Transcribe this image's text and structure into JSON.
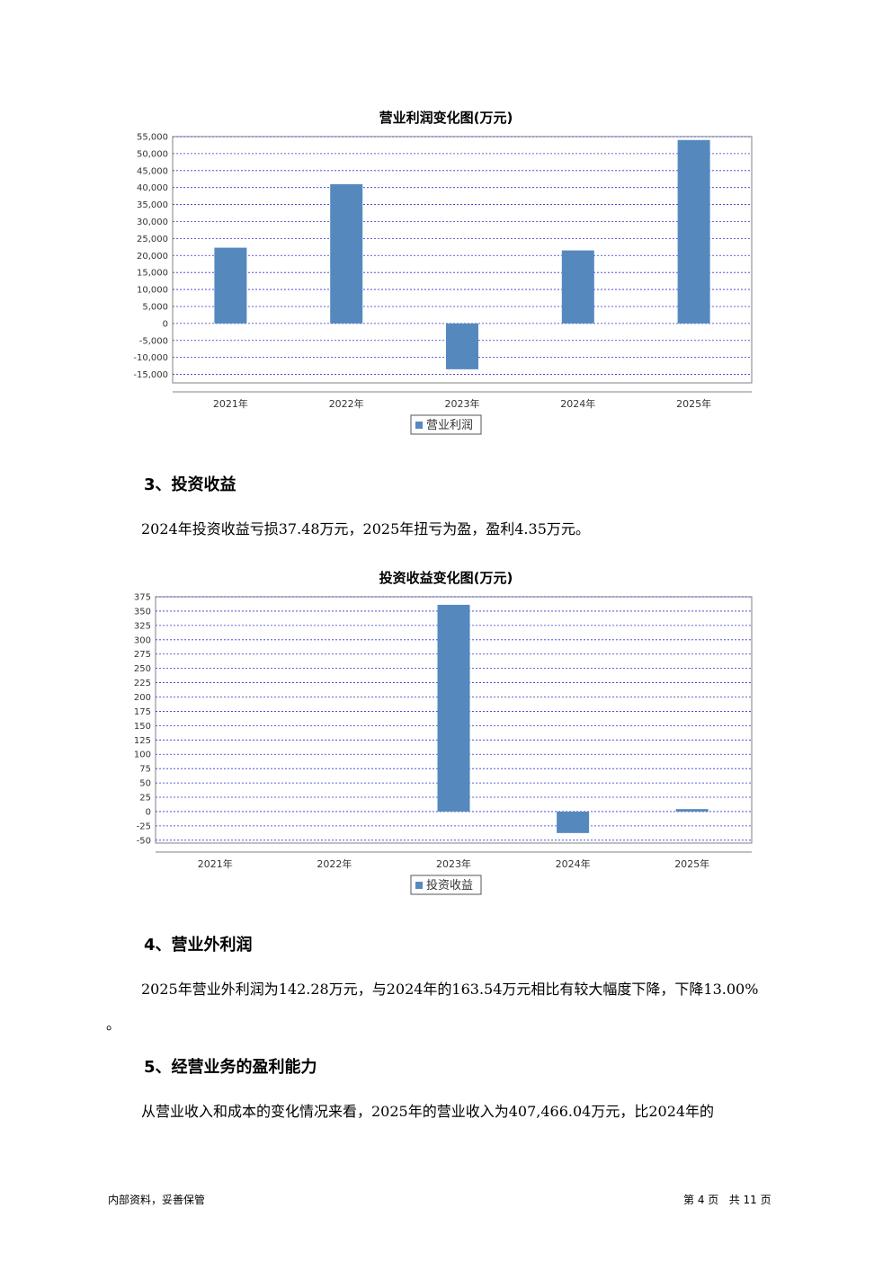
{
  "charts": [
    {
      "title": "营业利润变化图(万元)",
      "chart_data": {
        "type": "bar",
        "categories": [
          "2021年",
          "2022年",
          "2023年",
          "2024年",
          "2025年"
        ],
        "series": [
          {
            "name": "营业利润",
            "values": [
              22300,
              41000,
              -13500,
              21500,
              54000
            ],
            "color": "#5589be"
          }
        ],
        "ylim": [
          -17500,
          55000
        ],
        "yticks": [
          55000,
          50000,
          45000,
          40000,
          35000,
          30000,
          25000,
          20000,
          15000,
          10000,
          5000,
          0,
          -5000,
          -10000,
          -15000
        ],
        "ytick_labels": [
          "55,000",
          "50,000",
          "45,000",
          "40,000",
          "35,000",
          "30,000",
          "25,000",
          "20,000",
          "15,000",
          "10,000",
          "5,000",
          "0",
          "-5,000",
          "-10,000",
          "-15,000"
        ],
        "grid": true,
        "legend": "bottom-center"
      }
    },
    {
      "title": "投资收益变化图(万元)",
      "chart_data": {
        "type": "bar",
        "categories": [
          "2021年",
          "2022年",
          "2023年",
          "2024年",
          "2025年"
        ],
        "series": [
          {
            "name": "投资收益",
            "values": [
              0,
              0,
              361,
              -37.48,
              4.35
            ],
            "color": "#5589be"
          }
        ],
        "ylim": [
          -55,
          375
        ],
        "yticks": [
          375,
          350,
          325,
          300,
          275,
          250,
          225,
          200,
          175,
          150,
          125,
          100,
          75,
          50,
          25,
          0,
          -25,
          -50
        ],
        "ytick_labels": [
          "375",
          "350",
          "325",
          "300",
          "275",
          "250",
          "225",
          "200",
          "175",
          "150",
          "125",
          "100",
          "75",
          "50",
          "25",
          "0",
          "-25",
          "-50"
        ],
        "grid": true,
        "legend": "bottom-center"
      }
    }
  ],
  "sections": {
    "s3_heading": "3、投资收益",
    "s3_text": "2024年投资收益亏损37.48万元，2025年扭亏为盈，盈利4.35万元。",
    "s4_heading": "4、营业外利润",
    "s4_text": "2025年营业外利润为142.28万元，与2024年的163.54万元相比有较大幅度下降，下降13.00%",
    "s4_text_cont": "。",
    "s5_heading": "5、经营业务的盈利能力",
    "s5_text": "从营业收入和成本的变化情况来看，2025年的营业收入为407,466.04万元，比2024年的"
  },
  "footer": {
    "left": "内部资料，妥善保管",
    "right": "第 4 页   共 11 页"
  }
}
